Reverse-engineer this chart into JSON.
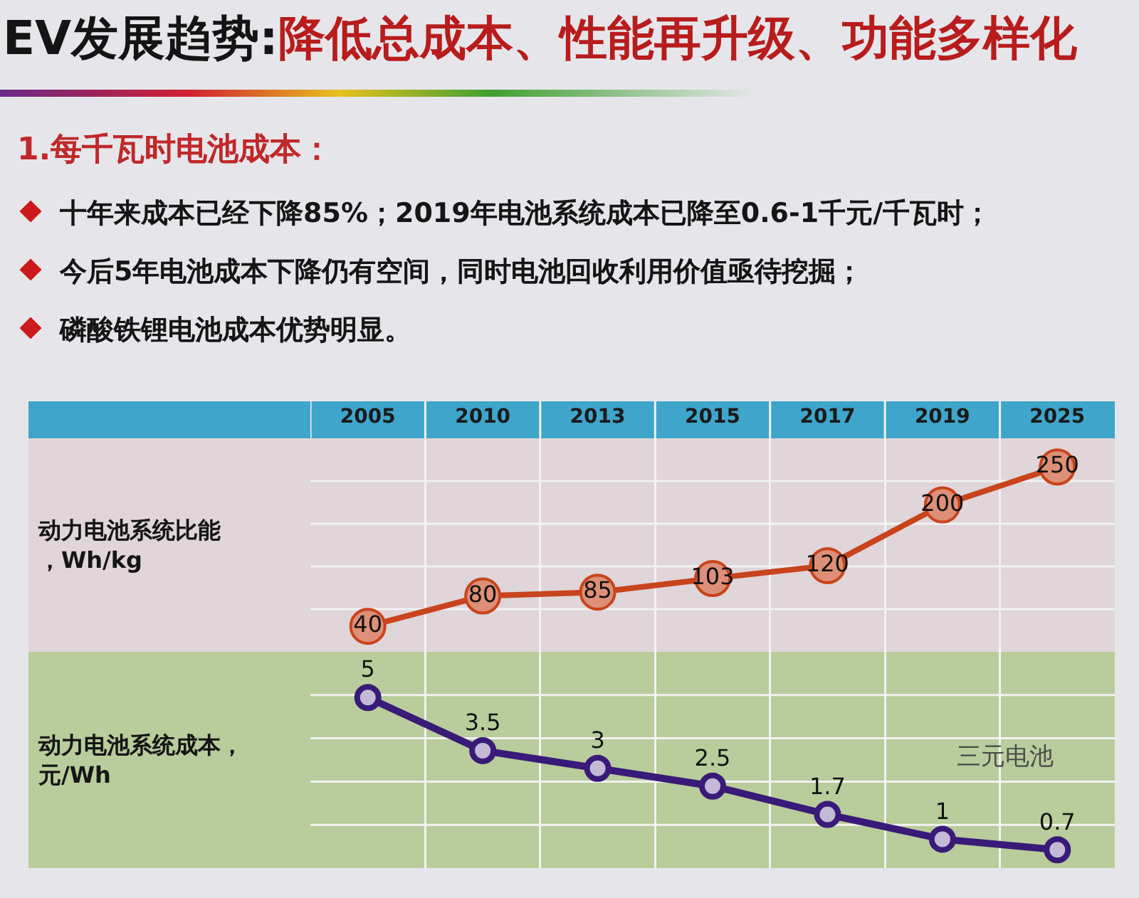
{
  "chart_data": [
    {
      "type": "line",
      "title": "EV发展趋势:降低总成本、性能再升级、功能多样化",
      "subtitle": "1.每千瓦时电池成本：",
      "annotations": [
        "十年来成本已经下降85%；2019年电池系统成本已降至0.6-1千元/千瓦时；",
        "今后5年电池成本下降仍有空间，同时电池回收利用价值亟待挖掘；",
        "磷酸铁锂电池成本优势明显。"
      ],
      "ylabel": "动力电池系统比能，Wh/kg",
      "categories": [
        "2005",
        "2010",
        "2013",
        "2015",
        "2017",
        "2019",
        "2025"
      ],
      "series": [
        {
          "color": "#c8441c",
          "values": [
            40,
            80,
            85,
            103,
            120,
            200,
            250
          ]
        }
      ],
      "marker": "circle",
      "data_labels": true,
      "grid": true,
      "tick_labels": "x"
    },
    {
      "type": "line",
      "ylabel": "动力电池系统成本，元/Wh",
      "categories": [
        "2005",
        "2010",
        "2013",
        "2015",
        "2017",
        "2019",
        "2025"
      ],
      "series": [
        {
          "name": "三元电池",
          "color": "#3a1a78",
          "values": [
            5,
            3.5,
            3,
            2.5,
            1.7,
            1,
            0.7
          ]
        }
      ],
      "marker": "circle",
      "data_labels": true,
      "grid": true,
      "tick_labels": false
    }
  ]
}
